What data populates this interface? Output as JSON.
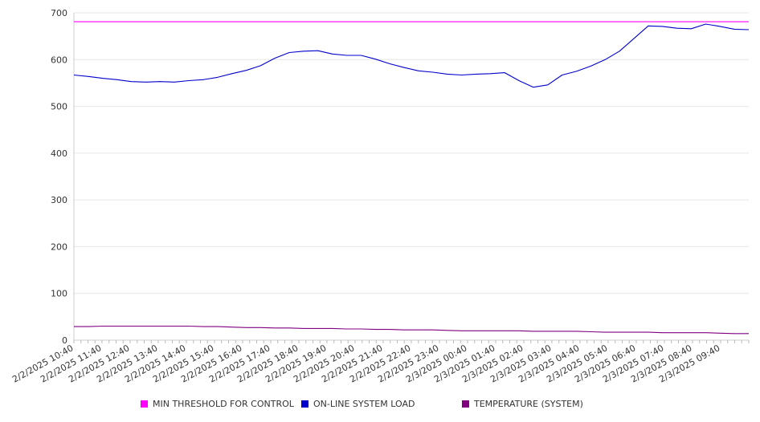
{
  "chart_data": {
    "type": "line",
    "title": "",
    "xlabel": "",
    "ylabel": "",
    "ylim": [
      0,
      700
    ],
    "yticks": [
      "0",
      "100",
      "200",
      "300",
      "400",
      "500",
      "600",
      "700"
    ],
    "grid": true,
    "legend_position": "bottom",
    "x_tick_labels": [
      "2/2/2025 10:40",
      "2/2/2025 11:40",
      "2/2/2025 12:40",
      "2/2/2025 13:40",
      "2/2/2025 14:40",
      "2/2/2025 15:40",
      "2/2/2025 16:40",
      "2/2/2025 17:40",
      "2/2/2025 18:40",
      "2/2/2025 19:40",
      "2/2/2025 20:40",
      "2/2/2025 21:40",
      "2/2/2025 22:40",
      "2/2/2025 23:40",
      "2/3/2025 00:40",
      "2/3/2025 01:40",
      "2/3/2025 02:40",
      "2/3/2025 03:40",
      "2/3/2025 04:40",
      "2/3/2025 05:40",
      "2/3/2025 06:40",
      "2/3/2025 07:40",
      "2/3/2025 08:40",
      "2/3/2025 09:40"
    ],
    "x": [
      "2/2/2025 10:40",
      "2/2/2025 11:10",
      "2/2/2025 11:40",
      "2/2/2025 12:10",
      "2/2/2025 12:40",
      "2/2/2025 13:10",
      "2/2/2025 13:40",
      "2/2/2025 14:10",
      "2/2/2025 14:40",
      "2/2/2025 15:10",
      "2/2/2025 15:40",
      "2/2/2025 16:10",
      "2/2/2025 16:40",
      "2/2/2025 17:10",
      "2/2/2025 17:40",
      "2/2/2025 18:10",
      "2/2/2025 18:40",
      "2/2/2025 19:10",
      "2/2/2025 19:40",
      "2/2/2025 20:10",
      "2/2/2025 20:40",
      "2/2/2025 21:10",
      "2/2/2025 21:40",
      "2/2/2025 22:10",
      "2/2/2025 22:40",
      "2/2/2025 23:10",
      "2/2/2025 23:40",
      "2/3/2025 00:10",
      "2/3/2025 00:40",
      "2/3/2025 01:10",
      "2/3/2025 01:40",
      "2/3/2025 02:10",
      "2/3/2025 02:40",
      "2/3/2025 03:10",
      "2/3/2025 03:40",
      "2/3/2025 04:10",
      "2/3/2025 04:40",
      "2/3/2025 05:10",
      "2/3/2025 05:40",
      "2/3/2025 06:10",
      "2/3/2025 06:40",
      "2/3/2025 07:10",
      "2/3/2025 07:40",
      "2/3/2025 08:10",
      "2/3/2025 08:40",
      "2/3/2025 09:10",
      "2/3/2025 09:40",
      "2/3/2025 10:10"
    ],
    "series": [
      {
        "name": "MIN THRESHOLD FOR CONTROL",
        "color": "#ff00ff",
        "values": [
          681,
          681,
          681,
          681,
          681,
          681,
          681,
          681,
          681,
          681,
          681,
          681,
          681,
          681,
          681,
          681,
          681,
          681,
          681,
          681,
          681,
          681,
          681,
          681,
          681,
          681,
          681,
          681,
          681,
          681,
          681,
          681,
          681,
          681,
          681,
          681,
          681,
          681,
          681,
          681,
          681,
          681,
          681,
          681,
          681,
          681,
          681,
          681
        ]
      },
      {
        "name": "ON-LINE SYSTEM LOAD",
        "color": "#0000cc",
        "values": [
          567,
          564,
          560,
          557,
          553,
          552,
          553,
          552,
          555,
          557,
          562,
          570,
          577,
          587,
          603,
          615,
          618,
          619,
          612,
          609,
          609,
          601,
          591,
          583,
          576,
          573,
          569,
          567,
          569,
          570,
          572,
          555,
          541,
          546,
          567,
          575,
          586,
          600,
          618,
          645,
          672,
          671,
          667,
          666,
          676,
          671,
          665,
          664
        ]
      },
      {
        "name": "TEMPERATURE (SYSTEM)",
        "color": "#800080",
        "values": [
          29,
          29,
          30,
          30,
          30,
          30,
          30,
          30,
          30,
          29,
          29,
          28,
          27,
          27,
          26,
          26,
          25,
          25,
          25,
          24,
          24,
          23,
          23,
          22,
          22,
          22,
          21,
          20,
          20,
          20,
          20,
          20,
          19,
          19,
          19,
          19,
          18,
          17,
          17,
          17,
          17,
          16,
          16,
          16,
          16,
          15,
          14,
          14
        ]
      }
    ]
  },
  "legend_swatch_colors": {
    "threshold": "#ff00ff",
    "load": "#0000cc",
    "temperature": "#800080"
  }
}
